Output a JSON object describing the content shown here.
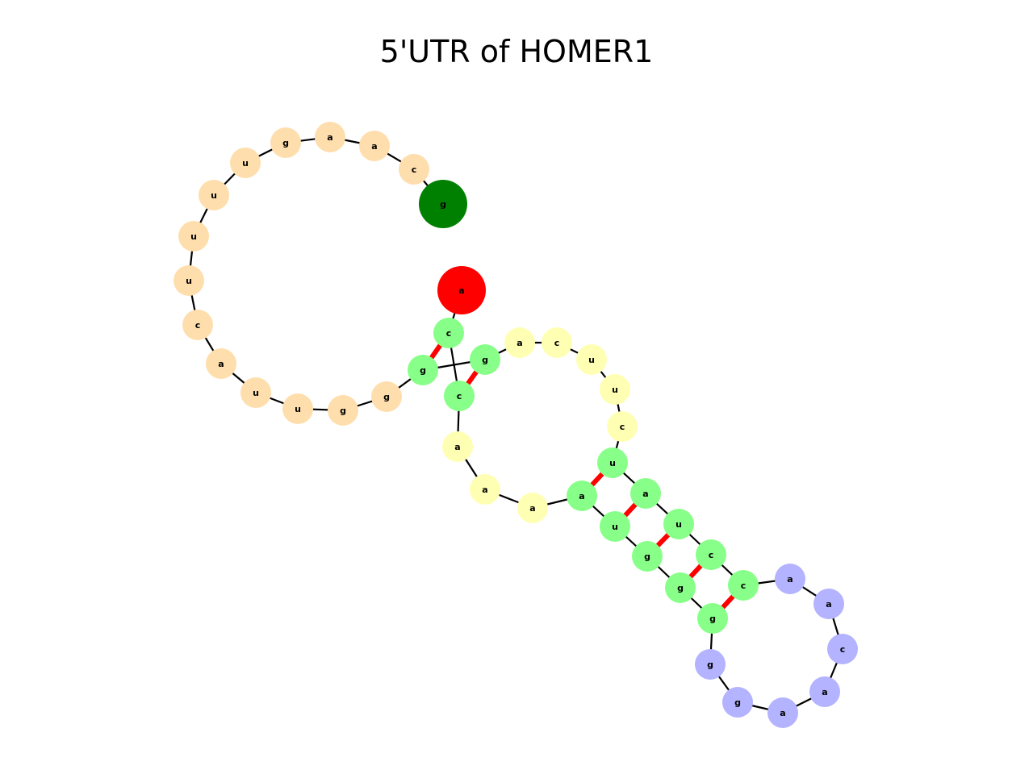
{
  "title": "5'UTR of HOMER1",
  "colors": {
    "loop5": "#FFDEAD",
    "stem": "#88FF88",
    "interior": "#FFFFB3",
    "hairpin": "#B3B3FF",
    "start": "#008000",
    "end": "#FF0000",
    "backbone": "#000000",
    "pair": "#FF0000"
  },
  "nucleotides": [
    {
      "base": "g",
      "region": "start"
    },
    {
      "base": "c",
      "region": "loop5"
    },
    {
      "base": "a",
      "region": "loop5"
    },
    {
      "base": "a",
      "region": "loop5"
    },
    {
      "base": "g",
      "region": "loop5"
    },
    {
      "base": "u",
      "region": "loop5"
    },
    {
      "base": "u",
      "region": "loop5"
    },
    {
      "base": "u",
      "region": "loop5"
    },
    {
      "base": "u",
      "region": "loop5"
    },
    {
      "base": "c",
      "region": "loop5"
    },
    {
      "base": "a",
      "region": "loop5"
    },
    {
      "base": "u",
      "region": "loop5"
    },
    {
      "base": "u",
      "region": "loop5"
    },
    {
      "base": "g",
      "region": "loop5"
    },
    {
      "base": "g",
      "region": "loop5"
    },
    {
      "base": "g",
      "region": "stem"
    },
    {
      "base": "g",
      "region": "stem"
    },
    {
      "base": "a",
      "region": "interior"
    },
    {
      "base": "c",
      "region": "interior"
    },
    {
      "base": "u",
      "region": "interior"
    },
    {
      "base": "u",
      "region": "interior"
    },
    {
      "base": "c",
      "region": "interior"
    },
    {
      "base": "u",
      "region": "stem"
    },
    {
      "base": "a",
      "region": "stem"
    },
    {
      "base": "u",
      "region": "stem"
    },
    {
      "base": "c",
      "region": "stem"
    },
    {
      "base": "c",
      "region": "stem"
    },
    {
      "base": "a",
      "region": "hairpin"
    },
    {
      "base": "a",
      "region": "hairpin"
    },
    {
      "base": "c",
      "region": "hairpin"
    },
    {
      "base": "a",
      "region": "hairpin"
    },
    {
      "base": "a",
      "region": "hairpin"
    },
    {
      "base": "g",
      "region": "hairpin"
    },
    {
      "base": "g",
      "region": "hairpin"
    },
    {
      "base": "g",
      "region": "stem"
    },
    {
      "base": "g",
      "region": "stem"
    },
    {
      "base": "g",
      "region": "stem"
    },
    {
      "base": "u",
      "region": "stem"
    },
    {
      "base": "a",
      "region": "stem"
    },
    {
      "base": "a",
      "region": "interior"
    },
    {
      "base": "a",
      "region": "interior"
    },
    {
      "base": "a",
      "region": "interior"
    },
    {
      "base": "c",
      "region": "stem"
    },
    {
      "base": "c",
      "region": "stem"
    },
    {
      "base": "a",
      "region": "end"
    }
  ],
  "pairs": [
    [
      15,
      43
    ],
    [
      16,
      42
    ],
    [
      22,
      38
    ],
    [
      23,
      37
    ],
    [
      24,
      36
    ],
    [
      25,
      35
    ],
    [
      26,
      34
    ]
  ]
}
